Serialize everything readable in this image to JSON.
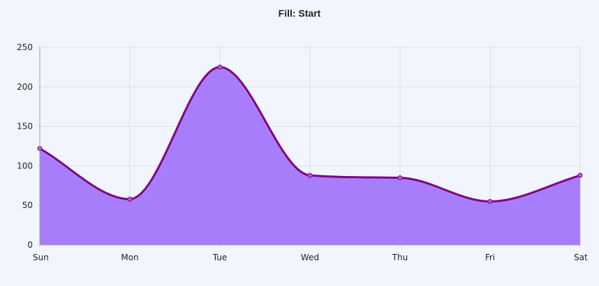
{
  "chart_data": {
    "type": "area",
    "title": "Fill: Start",
    "categories": [
      "Sun",
      "Mon",
      "Tue",
      "Wed",
      "Thu",
      "Fri",
      "Sat"
    ],
    "series": [
      {
        "values": [
          122,
          58,
          225,
          88,
          85,
          55,
          88
        ],
        "line_color": "#800080",
        "fill_color": "#a87dfc",
        "point_color": "#b05ee4"
      }
    ],
    "fill": "start",
    "ylim": [
      0,
      250
    ],
    "yticks": [
      "0",
      "50",
      "100",
      "150",
      "200",
      "250"
    ],
    "grid": true,
    "grid_color": "#dcdcec",
    "xlabel": "",
    "ylabel": ""
  }
}
